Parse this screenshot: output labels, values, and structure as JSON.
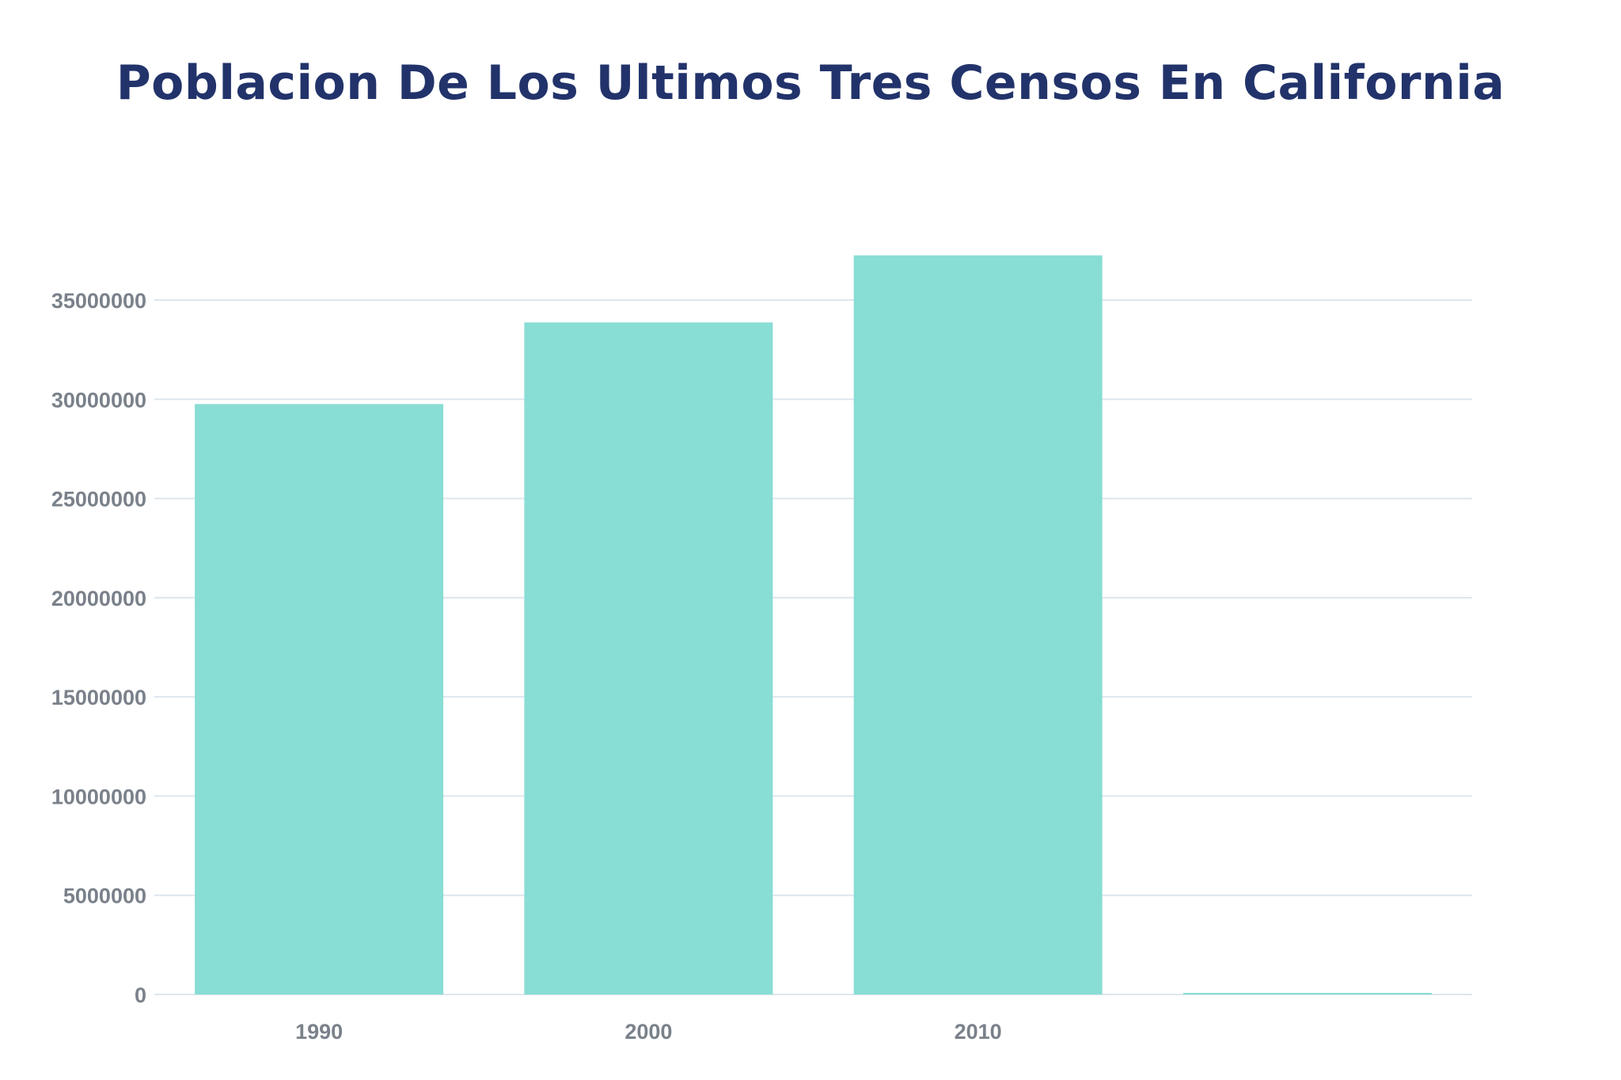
{
  "chart_data": {
    "type": "bar",
    "title": "Poblacion De Los Ultimos Tres Censos En California",
    "xlabel": "",
    "ylabel": "",
    "categories": [
      "1990",
      "2000",
      "2010",
      ""
    ],
    "values": [
      29760021,
      33871648,
      37253956,
      0
    ],
    "ylim": [
      0,
      37253956
    ],
    "yticks": [
      0,
      5000000,
      10000000,
      15000000,
      20000000,
      25000000,
      30000000,
      35000000
    ],
    "ytick_labels": [
      "0",
      "5000000",
      "10000000",
      "15000000",
      "20000000",
      "25000000",
      "30000000",
      "35000000"
    ],
    "grid": true,
    "legend": "none"
  },
  "colors": {
    "bar": "#88ddd4",
    "title": "#22336b",
    "tick_text": "#7a818a",
    "grid": "#dde6ee"
  }
}
